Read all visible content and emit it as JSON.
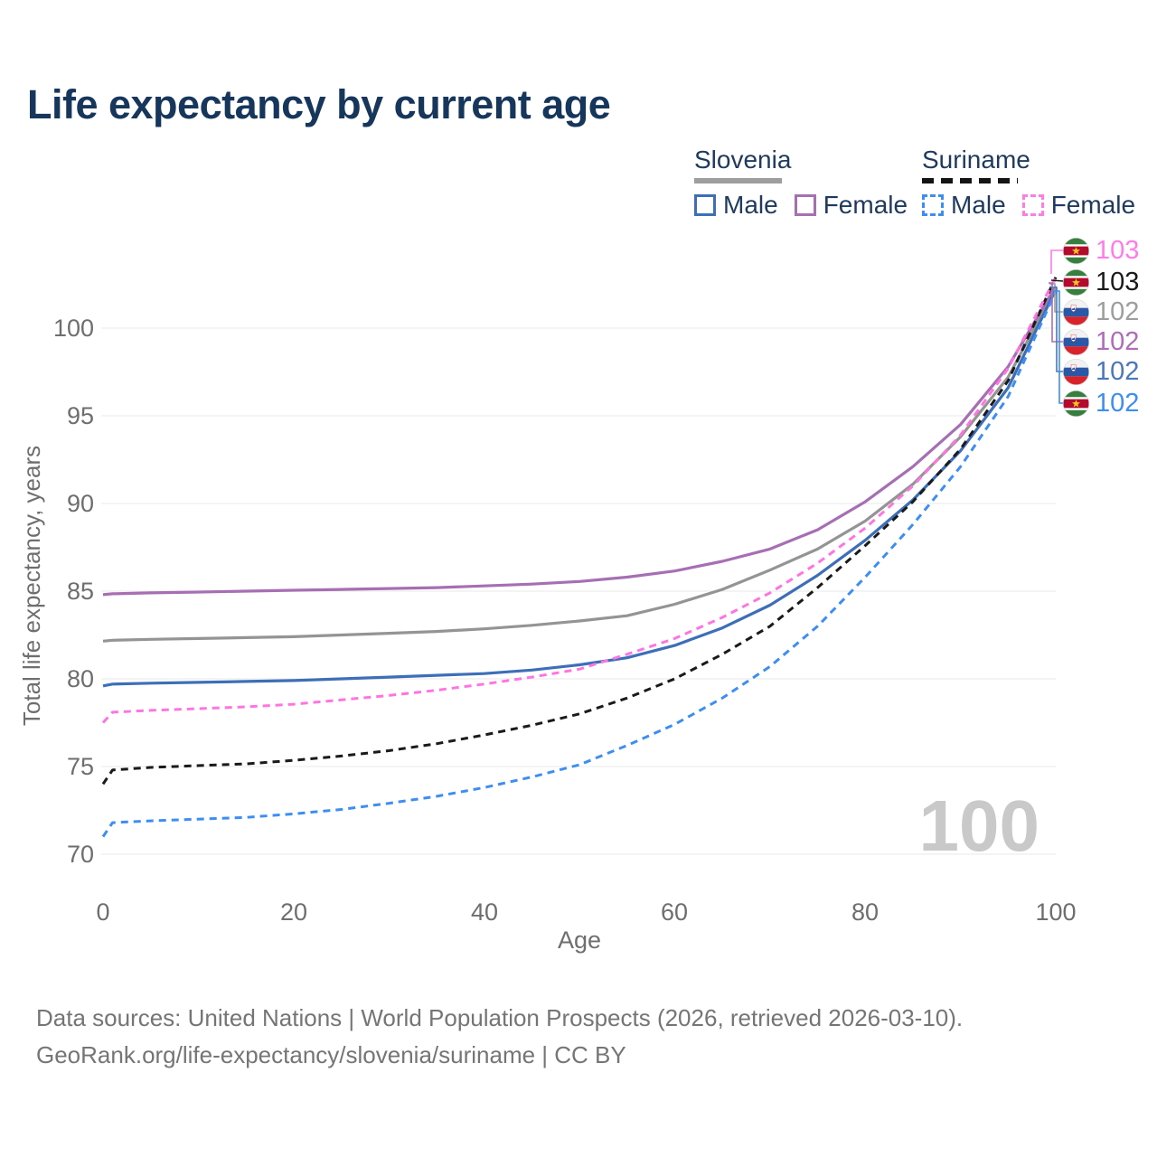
{
  "header": {
    "title": "Life expectancy by current age"
  },
  "legend": {
    "groups": [
      {
        "country": "Slovenia",
        "line_style": "solid",
        "line_color": "#9e9e9e",
        "items": [
          {
            "label": "Male",
            "color": "#3d6fb8",
            "style": "solid"
          },
          {
            "label": "Female",
            "color": "#a76fb3",
            "style": "solid"
          }
        ]
      },
      {
        "country": "Suriname",
        "line_style": "dashed",
        "line_color": "#141414",
        "items": [
          {
            "label": "Male",
            "color": "#3d8ef2",
            "style": "dashed"
          },
          {
            "label": "Female",
            "color": "#ff7ce8",
            "style": "dashed"
          }
        ]
      }
    ]
  },
  "chart_data": {
    "type": "line",
    "title": "Life expectancy by current age",
    "xlabel": "Age",
    "ylabel": "Total life expectancy, years",
    "xlim": [
      0,
      100
    ],
    "ylim": [
      70,
      103
    ],
    "grid": "horizontal",
    "legend_position": "top-right",
    "xticks": [
      "0",
      "20",
      "40",
      "60",
      "80",
      "100"
    ],
    "yticks": [
      "70",
      "75",
      "80",
      "85",
      "90",
      "95",
      "100"
    ],
    "hover_label": "100",
    "x": [
      0,
      1,
      5,
      10,
      15,
      20,
      25,
      30,
      35,
      40,
      45,
      50,
      55,
      60,
      65,
      70,
      75,
      80,
      85,
      90,
      95,
      100
    ],
    "series": [
      {
        "id": "slovenia-total",
        "name": "Slovenia",
        "country": "Slovenia",
        "sex": "Both",
        "color": "#949494",
        "dash": "solid",
        "values": [
          82.15,
          82.2,
          82.25,
          82.3,
          82.35,
          82.4,
          82.5,
          82.6,
          82.7,
          82.85,
          83.05,
          83.3,
          83.6,
          84.25,
          85.1,
          86.2,
          87.4,
          89.0,
          91.1,
          93.8,
          97.2,
          102.3
        ]
      },
      {
        "id": "slovenia-female",
        "name": "Slovenia Female",
        "country": "Slovenia",
        "sex": "Female",
        "color": "#a76fb3",
        "dash": "solid",
        "values": [
          84.8,
          84.85,
          84.9,
          84.95,
          85.0,
          85.05,
          85.1,
          85.15,
          85.2,
          85.3,
          85.4,
          85.55,
          85.8,
          86.15,
          86.7,
          87.4,
          88.5,
          90.1,
          92.1,
          94.5,
          97.8,
          102.4
        ]
      },
      {
        "id": "slovenia-male",
        "name": "Slovenia Male",
        "country": "Slovenia",
        "sex": "Male",
        "color": "#3d6fb8",
        "dash": "solid",
        "values": [
          79.6,
          79.7,
          79.75,
          79.8,
          79.85,
          79.9,
          80.0,
          80.1,
          80.2,
          80.3,
          80.5,
          80.8,
          81.2,
          81.9,
          82.9,
          84.2,
          85.9,
          87.9,
          90.2,
          93.0,
          96.6,
          102.2
        ]
      },
      {
        "id": "suriname-total",
        "name": "Suriname",
        "country": "Suriname",
        "sex": "Both",
        "color": "#1a1a1a",
        "dash": "dashed",
        "values": [
          74.0,
          74.8,
          74.95,
          75.05,
          75.15,
          75.35,
          75.6,
          75.9,
          76.3,
          76.8,
          77.35,
          78.0,
          78.9,
          80.0,
          81.4,
          83.0,
          85.2,
          87.6,
          90.1,
          93.1,
          97.0,
          102.9
        ]
      },
      {
        "id": "suriname-male",
        "name": "Suriname Male",
        "country": "Suriname",
        "sex": "Male",
        "color": "#3d8ef2",
        "dash": "dashed",
        "values": [
          71.0,
          71.8,
          71.9,
          72.0,
          72.1,
          72.3,
          72.55,
          72.9,
          73.3,
          73.8,
          74.4,
          75.1,
          76.2,
          77.4,
          78.9,
          80.7,
          83.0,
          85.8,
          88.8,
          92.1,
          96.1,
          102.1
        ]
      },
      {
        "id": "suriname-female",
        "name": "Suriname Female",
        "country": "Suriname",
        "sex": "Female",
        "color": "#ff74e2",
        "dash": "dashed",
        "values": [
          77.5,
          78.1,
          78.2,
          78.3,
          78.4,
          78.55,
          78.8,
          79.05,
          79.35,
          79.7,
          80.1,
          80.55,
          81.4,
          82.3,
          83.5,
          84.9,
          86.6,
          88.6,
          91.0,
          93.9,
          97.7,
          102.9
        ]
      }
    ],
    "end_labels": [
      {
        "value": "103",
        "flag": "suriname",
        "series": "Suriname Female",
        "color": "#ff7ce8"
      },
      {
        "value": "103",
        "flag": "suriname",
        "series": "Suriname",
        "color": "#1a1a1a"
      },
      {
        "value": "102",
        "flag": "slovenia",
        "series": "Slovenia",
        "color": "#9e9e9e"
      },
      {
        "value": "102",
        "flag": "slovenia",
        "series": "Slovenia Female",
        "color": "#b06cb8"
      },
      {
        "value": "102",
        "flag": "slovenia",
        "series": "Slovenia Male",
        "color": "#4a78b8"
      },
      {
        "value": "102",
        "flag": "suriname",
        "series": "Suriname Male",
        "color": "#3d8ef2"
      }
    ]
  },
  "footer": {
    "line1": "Data sources: United Nations | World Population Prospects (2026, retrieved 2026-03-10).",
    "line2": "GeoRank.org/life-expectancy/slovenia/suriname | CC BY"
  }
}
